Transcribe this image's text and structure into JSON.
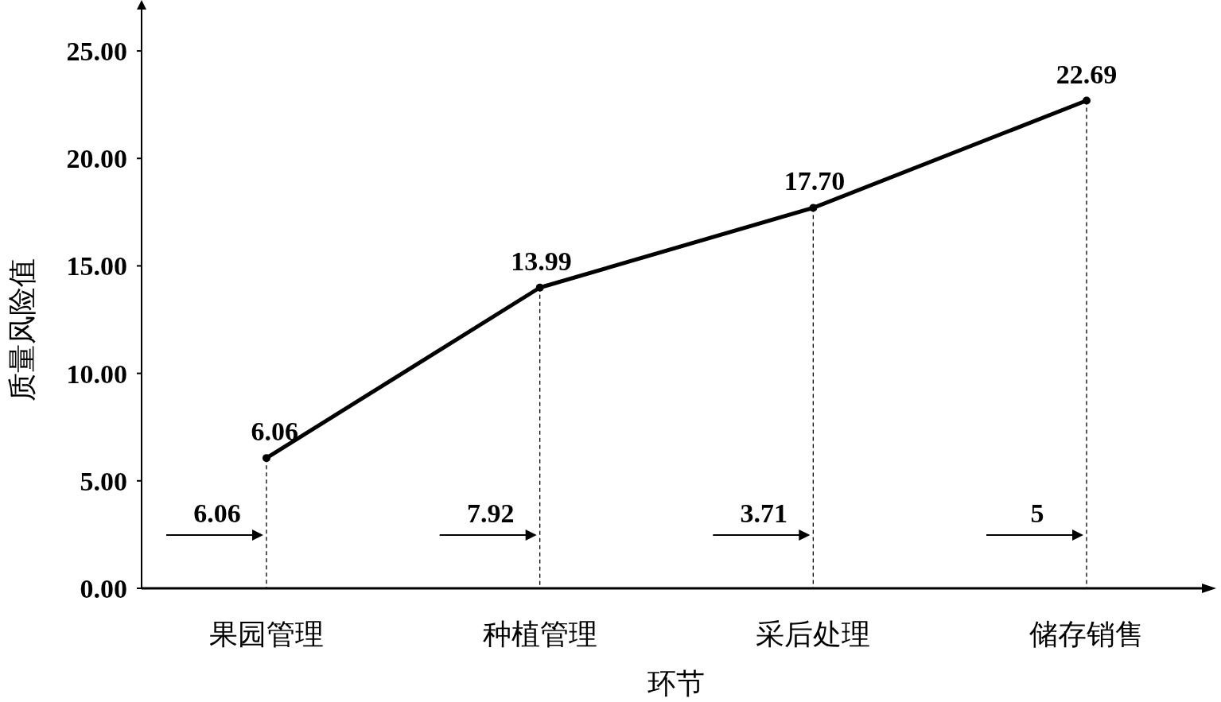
{
  "chart_data": {
    "type": "line",
    "xlabel": "环节",
    "ylabel": "质量风险值",
    "categories": [
      "果园管理",
      "种植管理",
      "采后处理",
      "储存销售"
    ],
    "series": [
      {
        "color": "#000000",
        "values": [
          6.06,
          13.99,
          17.7,
          22.69
        ],
        "value_labels": [
          "6.06",
          "13.99",
          "17.70",
          "22.69"
        ]
      }
    ],
    "ylim": [
      0,
      27
    ],
    "yticks": [
      {
        "value": 0,
        "label": "0.00"
      },
      {
        "value": 5,
        "label": "5.00"
      },
      {
        "value": 10,
        "label": "10.00"
      },
      {
        "value": 15,
        "label": "15.00"
      },
      {
        "value": 20,
        "label": "20.00"
      },
      {
        "value": 25,
        "label": "25.00"
      }
    ],
    "marker": "circle",
    "line_style": "solid",
    "annotations": [
      "6.06",
      "7.92",
      "3.71",
      "5"
    ]
  }
}
